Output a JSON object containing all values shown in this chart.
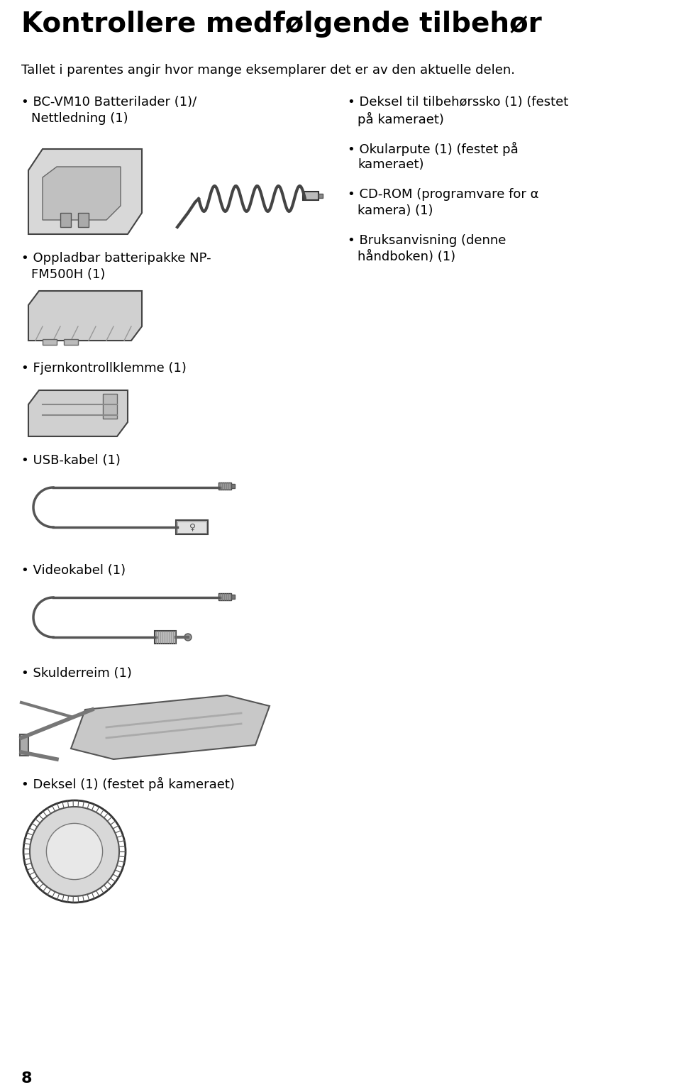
{
  "title": "Kontrollere medfølgende tilbehør",
  "subtitle": "Tallet i parentes angir hvor mange eksemplarer det er av den aktuelle delen.",
  "bg_color": "#ffffff",
  "text_color": "#000000",
  "title_fontsize": 28,
  "subtitle_fontsize": 13,
  "body_fontsize": 13,
  "page_number": "8",
  "left_col_items": [
    "• BC-VM10 Batterilader (1)/\n  Nettledning (1)",
    "• Oppladbar batteripakke NP-\n  FM500H (1)",
    "• Fjernkontrollklemme (1)",
    "• USB-kabel (1)",
    "• Videokabel (1)",
    "• Skulderreim (1)",
    "• Deksel (1) (festet på kameraet)"
  ],
  "right_col_items": [
    "• Deksel til tilbehørssko (1) (festet\n  på kameraet)",
    "• Okularpute (1) (festet på\n  kameraet)",
    "• CD-ROM (programvare for α\n  kamera) (1)",
    "• Bruksanvisning (denne\n  håndboken) (1)"
  ]
}
